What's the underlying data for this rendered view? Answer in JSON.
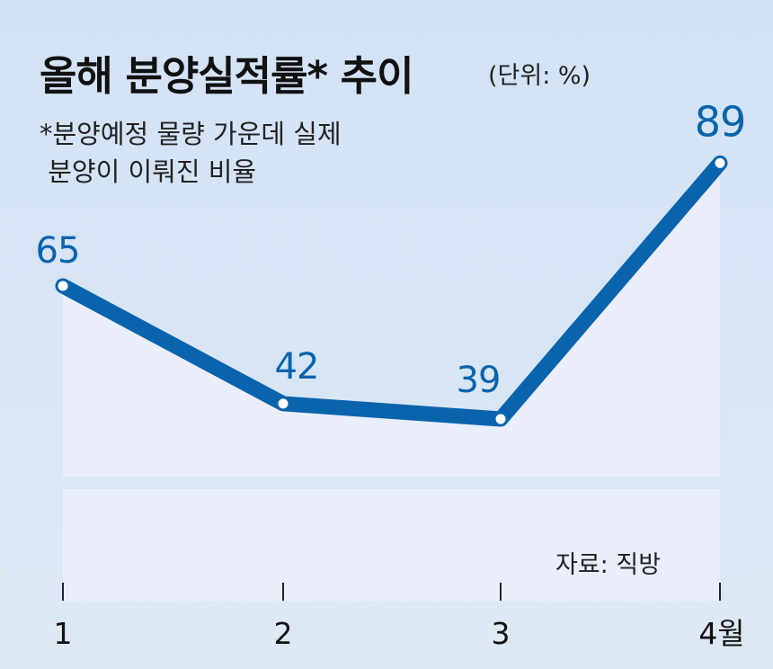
{
  "header": {
    "title": "올해 분양실적률* 추이",
    "unit": "(단위: %)",
    "note_line1": "*분양예정 물량 가운데 실제",
    "note_line2": " 분양이 이뤄진 비율"
  },
  "footer": {
    "source": "자료: 직방"
  },
  "colors": {
    "line": "#0a64ad",
    "value_label": "#0a64ad",
    "background": "#d6e4f4",
    "area_fill": "#eaedfa"
  },
  "chart_data": {
    "type": "area",
    "categories": [
      "1",
      "2",
      "3",
      "4월"
    ],
    "values": [
      65,
      42,
      39,
      89
    ],
    "title": "올해 분양실적률* 추이",
    "unit": "%",
    "source": "자료: 직방"
  }
}
